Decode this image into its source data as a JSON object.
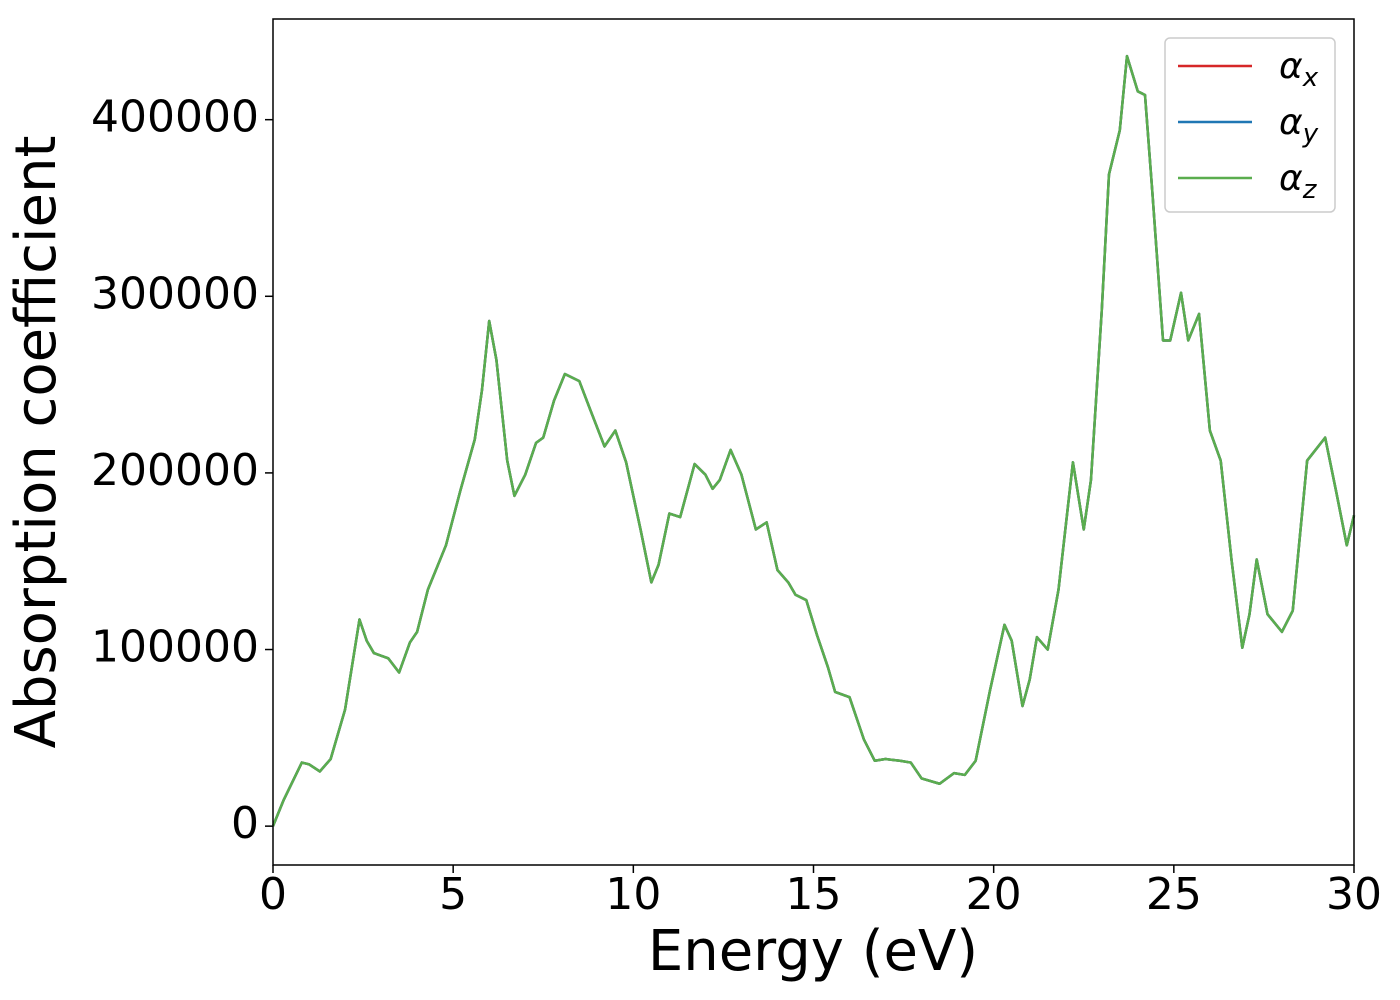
{
  "chart_data": {
    "type": "line",
    "xlabel": "Energy (eV)",
    "ylabel": "Absorption coefficient",
    "x": [
      0,
      0.3,
      0.8,
      1.0,
      1.3,
      1.6,
      2.0,
      2.4,
      2.6,
      2.8,
      3.2,
      3.5,
      3.8,
      4.0,
      4.3,
      4.8,
      5.2,
      5.6,
      5.8,
      6.0,
      6.2,
      6.5,
      6.7,
      7.0,
      7.3,
      7.5,
      7.8,
      8.1,
      8.5,
      8.8,
      9.2,
      9.5,
      9.8,
      10.2,
      10.5,
      10.7,
      11.0,
      11.3,
      11.7,
      12.0,
      12.2,
      12.4,
      12.7,
      13.0,
      13.4,
      13.7,
      14.0,
      14.3,
      14.5,
      14.8,
      15.1,
      15.4,
      15.6,
      16.0,
      16.4,
      16.7,
      17.0,
      17.4,
      17.7,
      18.0,
      18.5,
      18.9,
      19.2,
      19.5,
      19.9,
      20.3,
      20.5,
      20.8,
      21.0,
      21.2,
      21.5,
      21.8,
      22.2,
      22.5,
      22.7,
      23.0,
      23.2,
      23.5,
      23.7,
      24.0,
      24.2,
      24.4,
      24.7,
      24.9,
      25.2,
      25.4,
      25.7,
      26.0,
      26.3,
      26.6,
      26.9,
      27.1,
      27.3,
      27.6,
      28.0,
      28.3,
      28.7,
      29.2,
      29.5,
      29.8,
      30.0
    ],
    "series": [
      {
        "name": "α_x",
        "color": "#d62728",
        "values": [
          0,
          15000,
          36000,
          35000,
          31000,
          38000,
          66000,
          117000,
          105000,
          98000,
          95000,
          87000,
          104000,
          110000,
          134000,
          159000,
          190000,
          219000,
          247000,
          286000,
          264000,
          207000,
          187000,
          199000,
          217000,
          220000,
          241000,
          256000,
          252000,
          236000,
          215000,
          224000,
          206000,
          168000,
          138000,
          148000,
          177000,
          175000,
          205000,
          199000,
          191000,
          196000,
          213000,
          199000,
          168000,
          172000,
          145000,
          138000,
          131000,
          128000,
          108000,
          90000,
          76000,
          73000,
          49000,
          37000,
          38000,
          37000,
          36000,
          27000,
          24000,
          30000,
          29000,
          37000,
          77000,
          114000,
          105000,
          68000,
          83000,
          107000,
          100000,
          134000,
          206000,
          168000,
          196000,
          292000,
          369000,
          394000,
          436000,
          416000,
          414000,
          360000,
          275000,
          275000,
          302000,
          275000,
          290000,
          224000,
          207000,
          151000,
          101000,
          120000,
          151000,
          120000,
          110000,
          122000,
          207000,
          220000,
          190000,
          159000,
          176000
        ]
      },
      {
        "name": "α_y",
        "color": "#1f77b4",
        "values": [
          0,
          15000,
          36000,
          35000,
          31000,
          38000,
          66000,
          117000,
          105000,
          98000,
          95000,
          87000,
          104000,
          110000,
          134000,
          159000,
          190000,
          219000,
          247000,
          286000,
          264000,
          207000,
          187000,
          199000,
          217000,
          220000,
          241000,
          256000,
          252000,
          236000,
          215000,
          224000,
          206000,
          168000,
          138000,
          148000,
          177000,
          175000,
          205000,
          199000,
          191000,
          196000,
          213000,
          199000,
          168000,
          172000,
          145000,
          138000,
          131000,
          128000,
          108000,
          90000,
          76000,
          73000,
          49000,
          37000,
          38000,
          37000,
          36000,
          27000,
          24000,
          30000,
          29000,
          37000,
          77000,
          114000,
          105000,
          68000,
          83000,
          107000,
          100000,
          134000,
          206000,
          168000,
          196000,
          292000,
          369000,
          394000,
          436000,
          416000,
          414000,
          360000,
          275000,
          275000,
          302000,
          275000,
          290000,
          224000,
          207000,
          151000,
          101000,
          120000,
          151000,
          120000,
          110000,
          122000,
          207000,
          220000,
          190000,
          159000,
          176000
        ]
      },
      {
        "name": "α_z",
        "color": "#5aad4e",
        "values": [
          0,
          15000,
          36000,
          35000,
          31000,
          38000,
          66000,
          117000,
          105000,
          98000,
          95000,
          87000,
          104000,
          110000,
          134000,
          159000,
          190000,
          219000,
          247000,
          286000,
          264000,
          207000,
          187000,
          199000,
          217000,
          220000,
          241000,
          256000,
          252000,
          236000,
          215000,
          224000,
          206000,
          168000,
          138000,
          148000,
          177000,
          175000,
          205000,
          199000,
          191000,
          196000,
          213000,
          199000,
          168000,
          172000,
          145000,
          138000,
          131000,
          128000,
          108000,
          90000,
          76000,
          73000,
          49000,
          37000,
          38000,
          37000,
          36000,
          27000,
          24000,
          30000,
          29000,
          37000,
          77000,
          114000,
          105000,
          68000,
          83000,
          107000,
          100000,
          134000,
          206000,
          168000,
          196000,
          292000,
          369000,
          394000,
          436000,
          416000,
          414000,
          360000,
          275000,
          275000,
          302000,
          275000,
          290000,
          224000,
          207000,
          151000,
          101000,
          120000,
          151000,
          120000,
          110000,
          122000,
          207000,
          220000,
          190000,
          159000,
          176000
        ]
      }
    ],
    "xlim": [
      0,
      30
    ],
    "xticks": [
      0,
      5,
      10,
      15,
      20,
      25,
      30
    ],
    "ylim": [
      -22000,
      457000
    ],
    "yticks": [
      0,
      100000,
      200000,
      300000,
      400000
    ],
    "legend": "upper right",
    "grid": false
  }
}
